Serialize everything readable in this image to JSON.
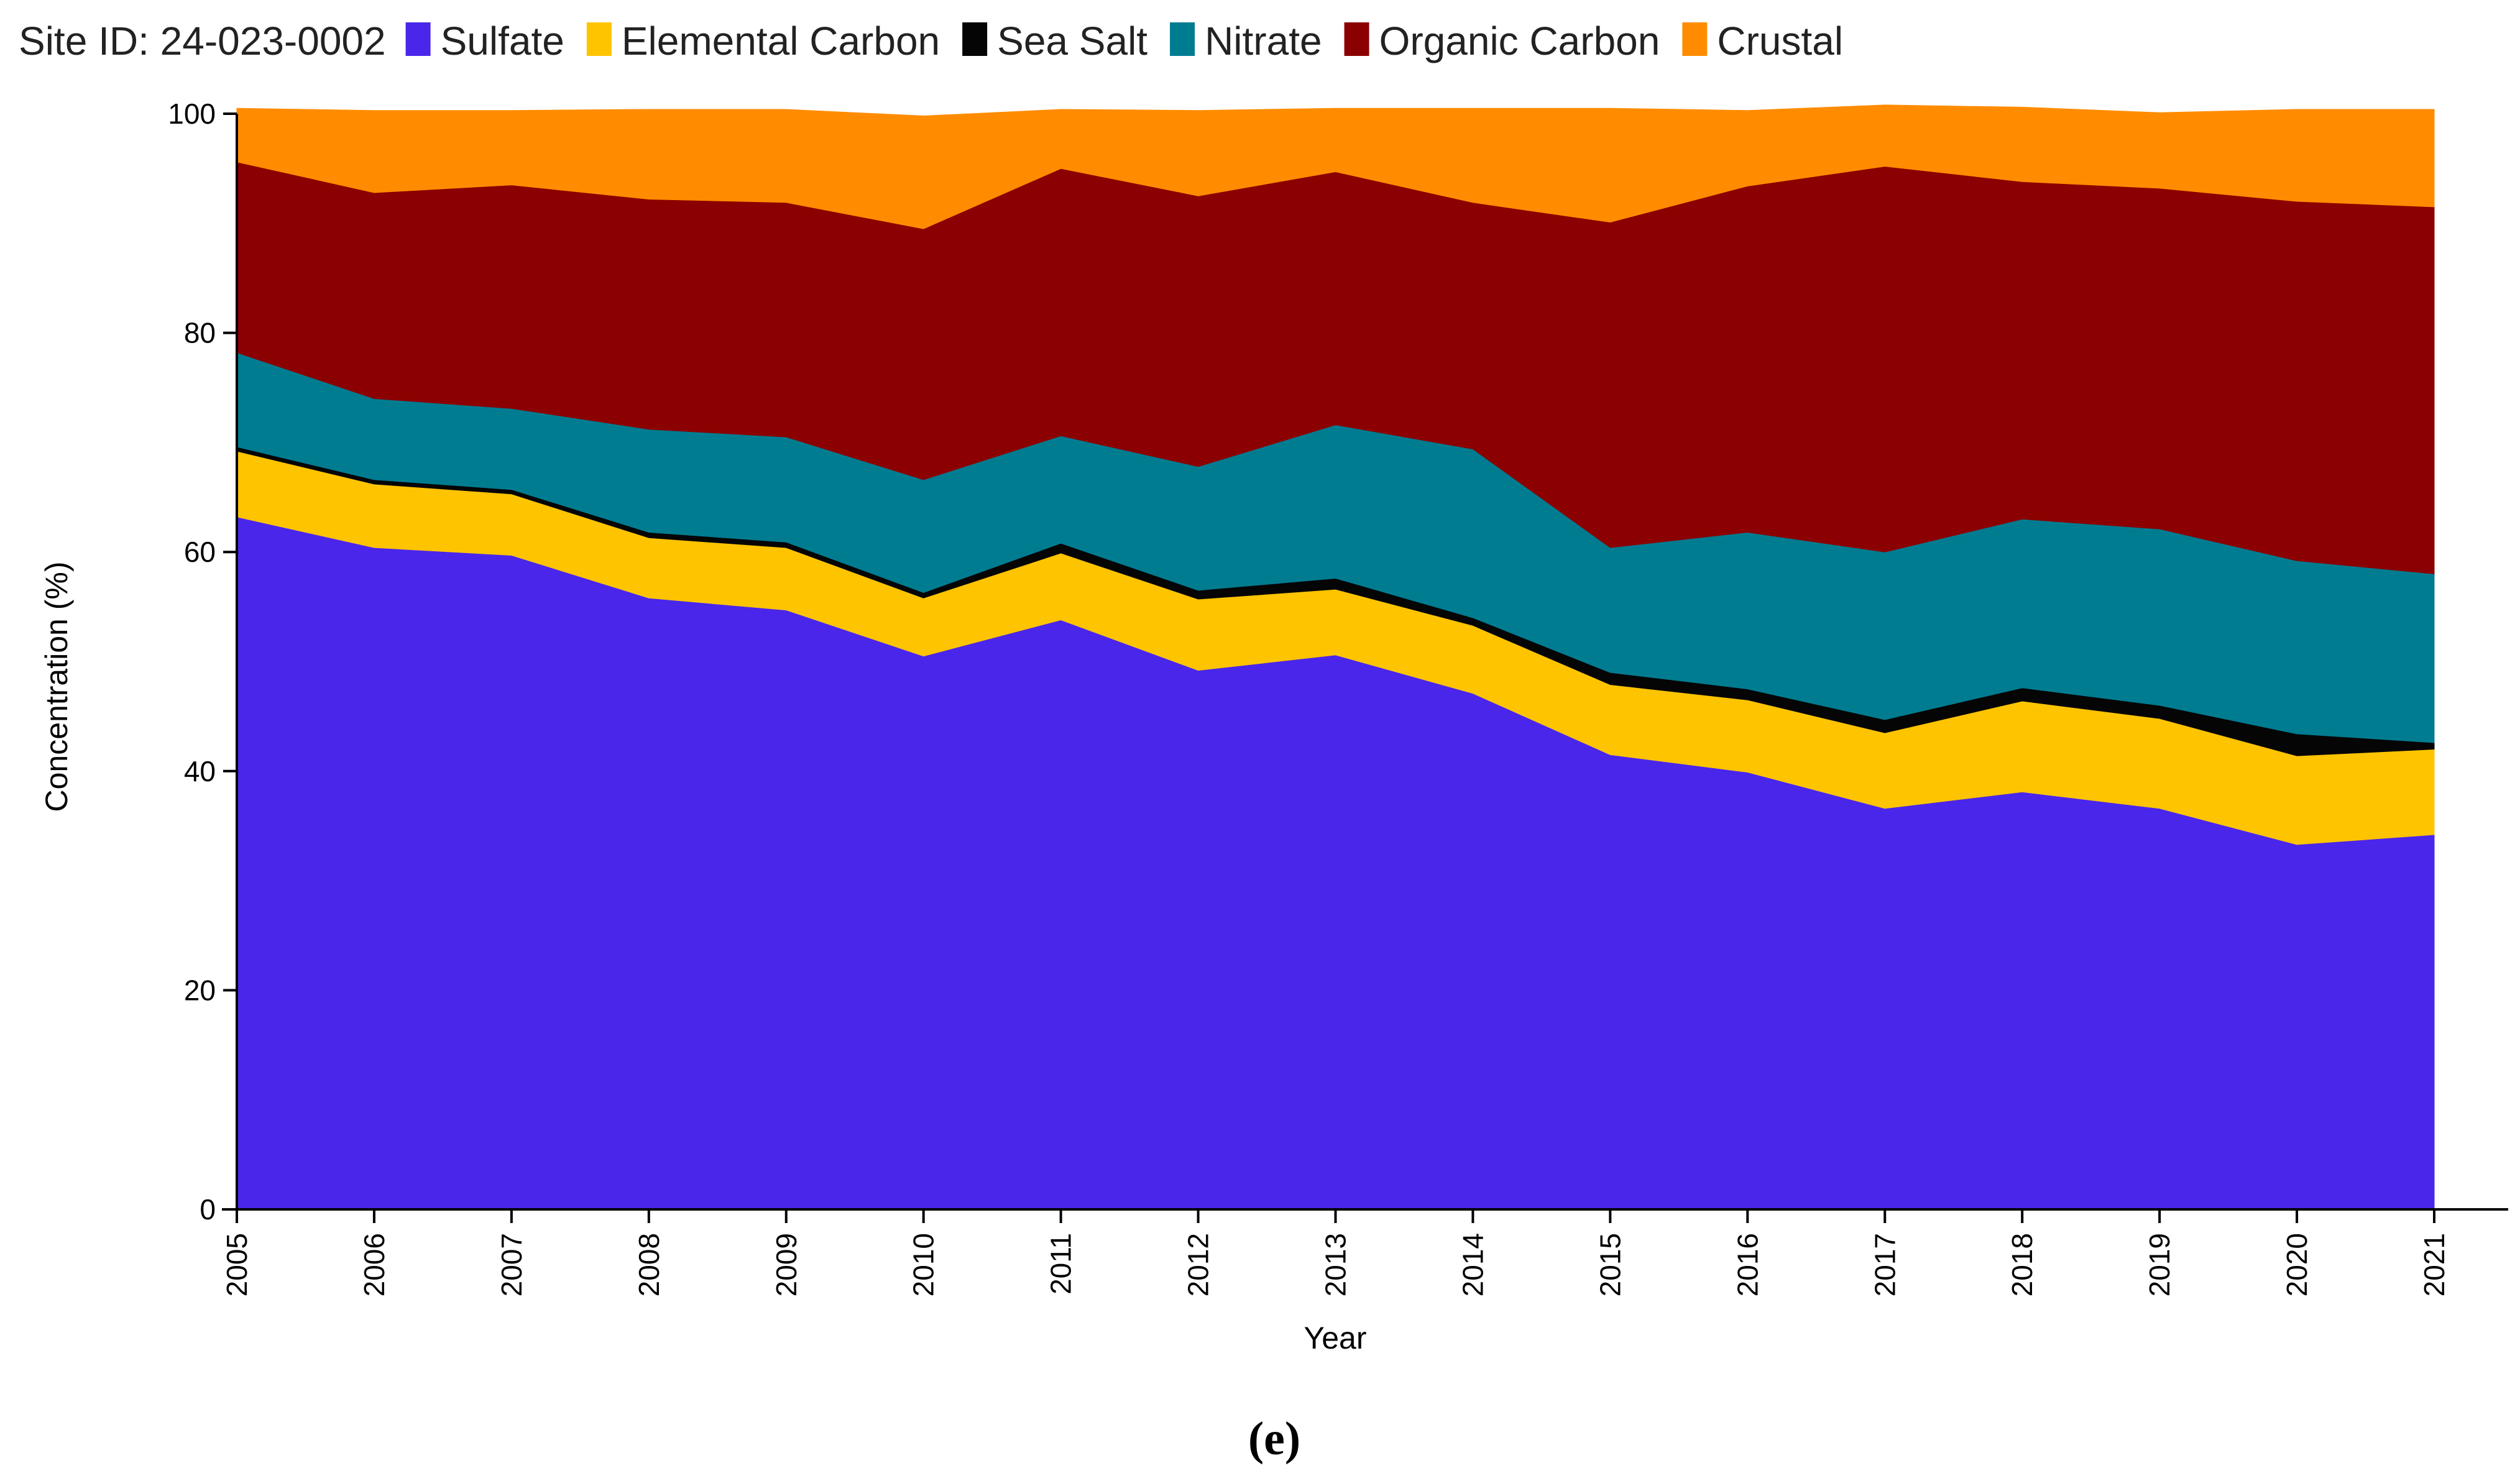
{
  "chart_data": {
    "type": "area",
    "stacked": true,
    "site_label": "Site ID: 24-023-0002",
    "caption": "(e)",
    "xlabel": "Year",
    "ylabel": "Concentration (%)",
    "ylim": [
      0,
      100
    ],
    "yticks": [
      "0",
      "20",
      "40",
      "60",
      "80",
      "100"
    ],
    "x": [
      "2005",
      "2006",
      "2007",
      "2008",
      "2009",
      "2010",
      "2011",
      "2012",
      "2013",
      "2014",
      "2015",
      "2016",
      "2017",
      "2018",
      "2019",
      "2020",
      "2021"
    ],
    "legend_position": "top-left",
    "series": [
      {
        "name": "Sulfate",
        "color": "#4A26EA",
        "values": [
          63.2,
          60.4,
          59.7,
          55.8,
          54.7,
          50.5,
          53.8,
          49.2,
          50.6,
          47.1,
          41.5,
          39.9,
          36.6,
          38.1,
          36.6,
          33.3,
          34.2
        ]
      },
      {
        "name": "Elemental Carbon",
        "color": "#FFC400",
        "values": [
          6.0,
          5.8,
          5.6,
          5.5,
          5.7,
          5.3,
          6.1,
          6.5,
          6.0,
          6.2,
          6.4,
          6.6,
          6.9,
          8.3,
          8.2,
          8.1,
          7.8
        ]
      },
      {
        "name": "Sea Salt",
        "color": "#050505",
        "values": [
          0.4,
          0.4,
          0.4,
          0.5,
          0.5,
          0.5,
          0.9,
          0.8,
          1.0,
          0.7,
          1.1,
          1.0,
          1.2,
          1.2,
          1.2,
          2.0,
          0.6
        ]
      },
      {
        "name": "Nitrate",
        "color": "#007C91",
        "values": [
          8.6,
          7.4,
          7.4,
          9.4,
          9.6,
          10.3,
          9.8,
          11.3,
          14.0,
          15.4,
          11.4,
          14.3,
          15.3,
          15.4,
          16.1,
          15.8,
          15.4
        ]
      },
      {
        "name": "Organic Carbon",
        "color": "#8B0000",
        "values": [
          17.4,
          18.8,
          20.4,
          21.0,
          21.4,
          22.9,
          24.4,
          24.7,
          23.1,
          22.5,
          29.7,
          31.6,
          35.2,
          30.8,
          31.1,
          32.8,
          33.5
        ]
      },
      {
        "name": "Crustal",
        "color": "#FF8C00",
        "values": [
          4.9,
          7.5,
          6.8,
          8.2,
          8.5,
          10.3,
          5.4,
          7.8,
          5.8,
          8.6,
          10.4,
          6.9,
          5.6,
          6.8,
          6.9,
          8.4,
          8.9
        ]
      }
    ]
  }
}
